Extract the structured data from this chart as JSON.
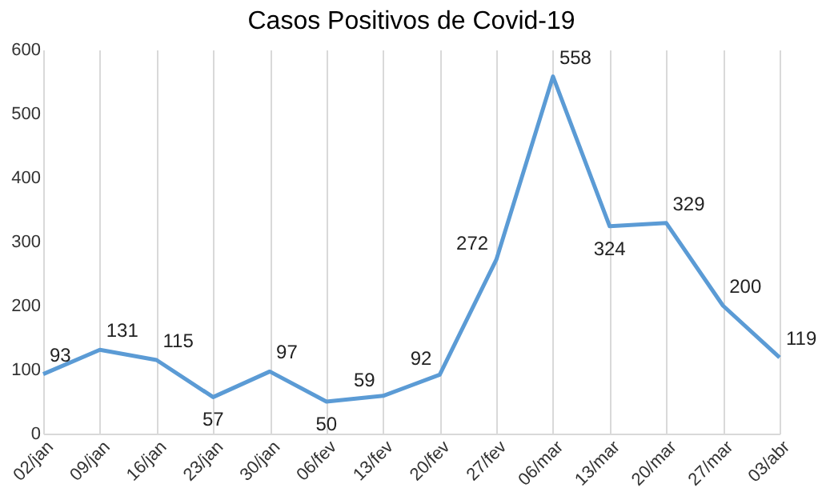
{
  "chart_data": {
    "type": "line",
    "title": "Casos Positivos de Covid-19",
    "categories": [
      "02/jan",
      "09/jan",
      "16/jan",
      "23/jan",
      "30/jan",
      "06/fev",
      "13/fev",
      "20/fev",
      "27/fev",
      "06/mar",
      "13/mar",
      "20/mar",
      "27/mar",
      "03/abr"
    ],
    "series": [
      {
        "color": "#5b9bd5",
        "values": [
          93,
          131,
          115,
          57,
          97,
          50,
          59,
          92,
          272,
          558,
          324,
          329,
          200,
          119
        ]
      }
    ],
    "ylim": [
      0,
      600
    ],
    "yticks": [
      0,
      100,
      200,
      300,
      400,
      500,
      600
    ],
    "grid": "x",
    "data_labels": true,
    "marker": "none",
    "line_style": "solid",
    "legend": false
  }
}
